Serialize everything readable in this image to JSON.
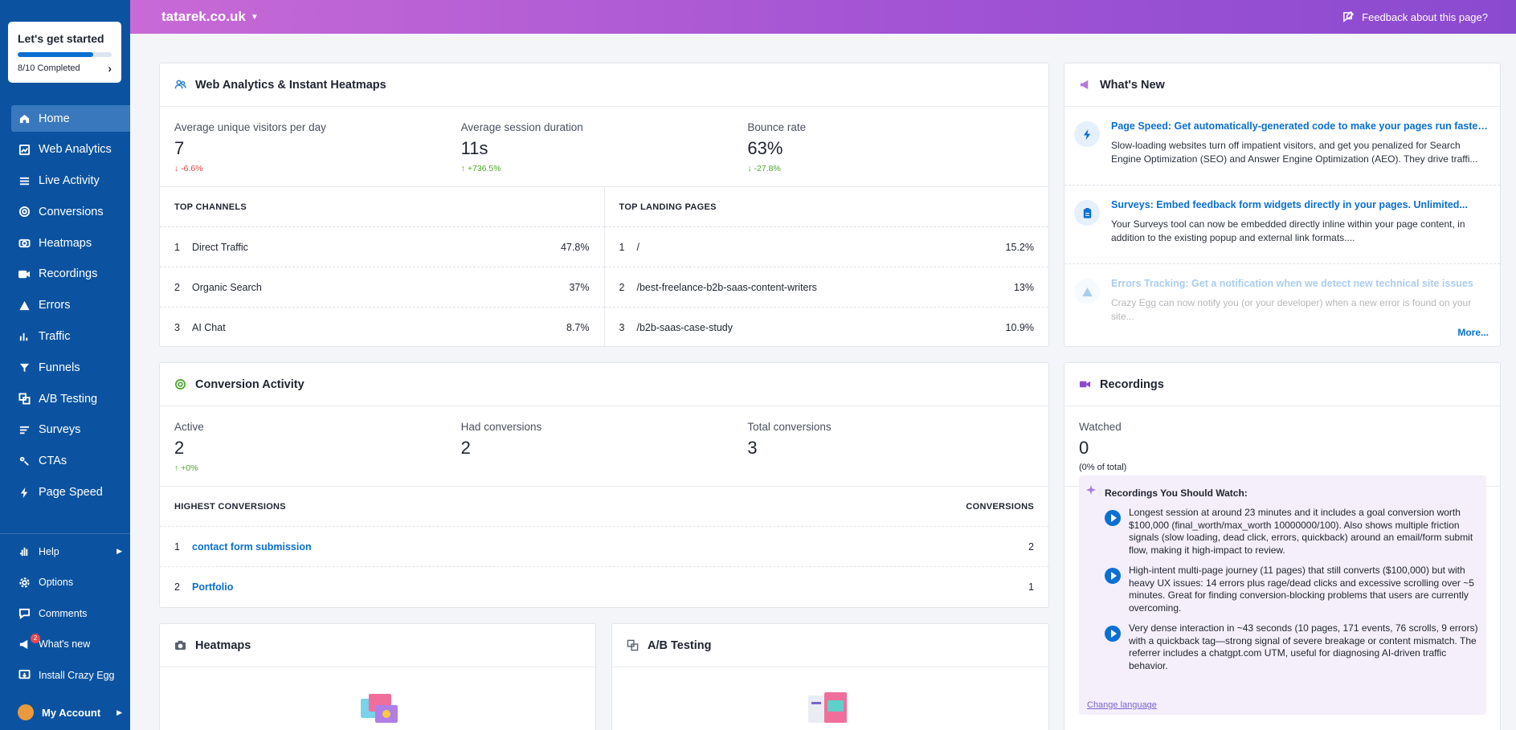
{
  "sidebar": {
    "get_started": {
      "title": "Let's get started",
      "progress_text": "8/10 Completed",
      "progress": 0.8
    },
    "nav": [
      {
        "label": "Home",
        "icon": "home-icon",
        "active": true
      },
      {
        "label": "Web Analytics",
        "icon": "chart-icon"
      },
      {
        "label": "Live Activity",
        "icon": "list-icon"
      },
      {
        "label": "Conversions",
        "icon": "target-icon"
      },
      {
        "label": "Heatmaps",
        "icon": "camera-icon"
      },
      {
        "label": "Recordings",
        "icon": "video-icon"
      },
      {
        "label": "Errors",
        "icon": "warning-icon"
      },
      {
        "label": "Traffic",
        "icon": "traffic-icon"
      },
      {
        "label": "Funnels",
        "icon": "funnel-icon"
      },
      {
        "label": "A/B Testing",
        "icon": "ab-icon"
      },
      {
        "label": "Surveys",
        "icon": "survey-icon"
      },
      {
        "label": "CTAs",
        "icon": "cta-icon"
      },
      {
        "label": "Page Speed",
        "icon": "bolt-icon"
      }
    ],
    "secondary": [
      {
        "label": "Help",
        "icon": "hand-icon",
        "has_arrow": true
      },
      {
        "label": "Options",
        "icon": "gear-icon"
      },
      {
        "label": "Comments",
        "icon": "comment-icon"
      },
      {
        "label": "What's new",
        "icon": "megaphone-icon",
        "badge": "2"
      },
      {
        "label": "Install Crazy Egg",
        "icon": "install-icon"
      }
    ],
    "account_label": "My Account"
  },
  "header": {
    "site": "tatarek.co.uk",
    "feedback": "Feedback about this page?"
  },
  "analytics": {
    "title": "Web Analytics & Instant Heatmaps",
    "stats": [
      {
        "label": "Average unique visitors per day",
        "value": "7",
        "delta": "-6.6%",
        "dir": "down"
      },
      {
        "label": "Average session duration",
        "value": "11s",
        "delta": "+736.5%",
        "dir": "up"
      },
      {
        "label": "Bounce rate",
        "value": "63%",
        "delta": "-27.8%",
        "dir": "up"
      }
    ],
    "channels_head": "TOP CHANNELS",
    "channels": [
      {
        "idx": "1",
        "name": "Direct Traffic",
        "value": "47.8%"
      },
      {
        "idx": "2",
        "name": "Organic Search",
        "value": "37%"
      },
      {
        "idx": "3",
        "name": "AI Chat",
        "value": "8.7%"
      }
    ],
    "landing_head": "TOP LANDING PAGES",
    "landing": [
      {
        "idx": "1",
        "name": "/",
        "value": "15.2%"
      },
      {
        "idx": "2",
        "name": "/best-freelance-b2b-saas-content-writers",
        "value": "13%"
      },
      {
        "idx": "3",
        "name": "/b2b-saas-case-study",
        "value": "10.9%"
      }
    ]
  },
  "conversion": {
    "title": "Conversion Activity",
    "stats": [
      {
        "label": "Active",
        "value": "2",
        "delta": "+0%"
      },
      {
        "label": "Had conversions",
        "value": "2"
      },
      {
        "label": "Total conversions",
        "value": "3"
      }
    ],
    "head_left": "HIGHEST CONVERSIONS",
    "head_right": "CONVERSIONS",
    "rows": [
      {
        "idx": "1",
        "name": "contact form submission",
        "value": "2"
      },
      {
        "idx": "2",
        "name": "Portfolio",
        "value": "1"
      }
    ]
  },
  "whats_new": {
    "title": "What's New",
    "items": [
      {
        "title": "Page Speed: Get automatically-generated code to make your pages run faster,...",
        "body": "Slow-loading websites turn off impatient visitors, and get you penalized for Search Engine Optimization (SEO) and Answer Engine Optimization (AEO). They drive traffi...",
        "icon": "bolt-icon"
      },
      {
        "title": "Surveys: Embed feedback form widgets directly in your pages. Unlimited...",
        "body": "Your Surveys tool can now be embedded directly inline within your page content, in addition to the existing popup and external link formats....",
        "icon": "clipboard-icon"
      },
      {
        "title": "Errors Tracking: Get a notification when we detect new technical site issues",
        "body": "Crazy Egg can now notify you (or your developer) when a new error is found on your site...",
        "icon": "warning-icon"
      }
    ],
    "more": "More..."
  },
  "recordings": {
    "title": "Recordings",
    "watched_label": "Watched",
    "watched_value": "0",
    "watched_sub": "(0% of total)",
    "should_watch_title": "Recordings You Should Watch:",
    "items": [
      "Longest session at around 23 minutes and it includes a goal conversion worth $100,000 (final_worth/max_worth 10000000/100). Also shows multiple friction signals (slow loading, dead click, errors, quickback) around an email/form submit flow, making it high-impact to review.",
      "High-intent multi-page journey (11 pages) that still converts ($100,000) but with heavy UX issues: 14 errors plus rage/dead clicks and excessive scrolling over ~5 minutes. Great for finding conversion-blocking problems that users are currently overcoming.",
      "Very dense interaction in ~43 seconds (10 pages, 171 events, 76 scrolls, 9 errors) with a quickback tag—strong signal of severe breakage or content mismatch. The referrer includes a chatgpt.com UTM, useful for diagnosing AI-driven traffic behavior."
    ],
    "change_language": "Change language"
  },
  "heatmaps": {
    "title": "Heatmaps"
  },
  "abtesting": {
    "title": "A/B Testing"
  },
  "colors": {
    "sidebar": "#0b53a1",
    "accent": "#0b6fd1",
    "header_start": "#c86ad6",
    "header_end": "#8a4ad0"
  }
}
